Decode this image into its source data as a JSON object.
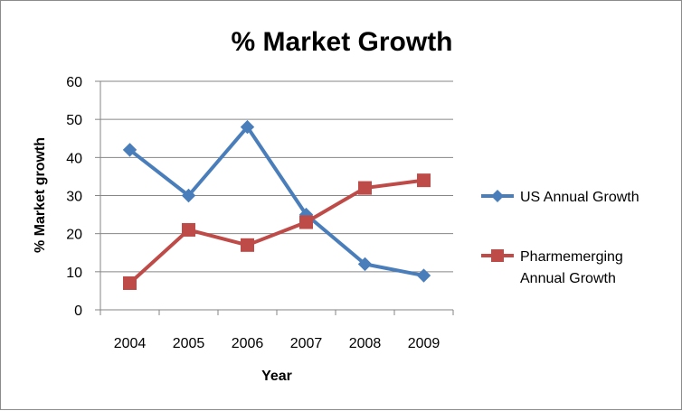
{
  "chart_data": {
    "type": "line",
    "title": "% Market Growth",
    "xlabel": "Year",
    "ylabel": "% Market growth",
    "categories": [
      "2004",
      "2005",
      "2006",
      "2007",
      "2008",
      "2009"
    ],
    "ylim": [
      0,
      60
    ],
    "yticks": [
      "0",
      "10",
      "20",
      "30",
      "40",
      "50",
      "60"
    ],
    "grid": true,
    "legend_position": "right",
    "series": [
      {
        "name": "US Annual Growth",
        "legend_lines": [
          "US Annual Growth"
        ],
        "color": "#4a7ebb",
        "marker": "diamond",
        "values": [
          42,
          30,
          48,
          25,
          12,
          9
        ]
      },
      {
        "name": "Pharmemerging Annual Growth",
        "legend_lines": [
          "Pharmemerging",
          "Annual Growth"
        ],
        "color": "#be4b48",
        "marker": "square",
        "values": [
          7,
          21,
          17,
          23,
          32,
          34
        ]
      }
    ]
  }
}
